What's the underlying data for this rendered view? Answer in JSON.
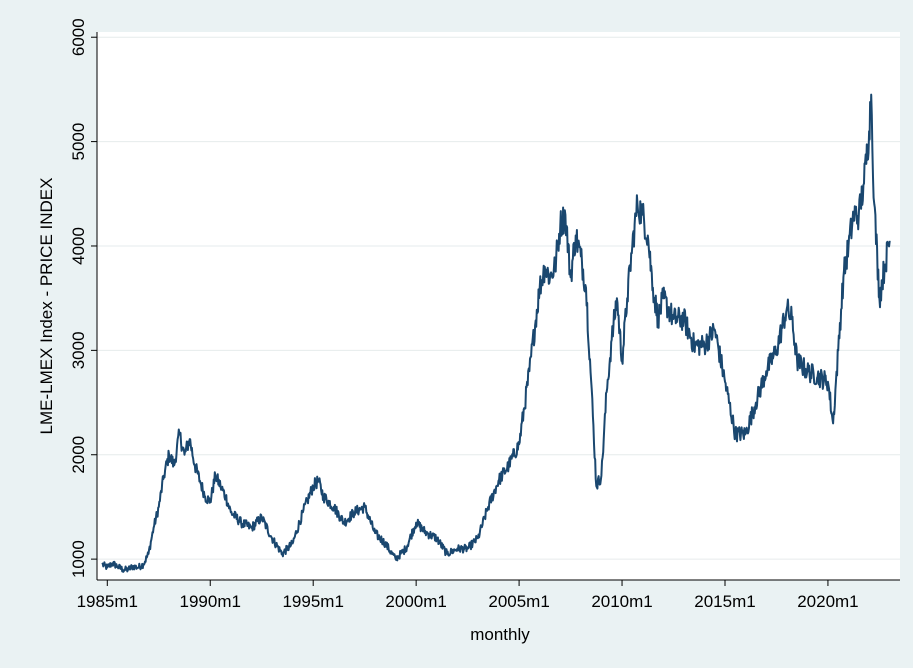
{
  "chart_data": {
    "type": "line",
    "title": "",
    "xlabel": "monthly",
    "ylabel": "LME-LMEX Index - PRICE INDEX",
    "xlim": [
      1984.5,
      2023.5
    ],
    "ylim": [
      800,
      6050
    ],
    "x_ticks": [
      {
        "value": 1985,
        "label": "1985m1"
      },
      {
        "value": 1990,
        "label": "1990m1"
      },
      {
        "value": 1995,
        "label": "1995m1"
      },
      {
        "value": 2000,
        "label": "2000m1"
      },
      {
        "value": 2005,
        "label": "2005m1"
      },
      {
        "value": 2010,
        "label": "2010m1"
      },
      {
        "value": 2015,
        "label": "2015m1"
      },
      {
        "value": 2020,
        "label": "2020m1"
      }
    ],
    "y_ticks": [
      {
        "value": 1000,
        "label": "1000"
      },
      {
        "value": 2000,
        "label": "2000"
      },
      {
        "value": 3000,
        "label": "3000"
      },
      {
        "value": 4000,
        "label": "4000"
      },
      {
        "value": 5000,
        "label": "5000"
      },
      {
        "value": 6000,
        "label": "6000"
      }
    ],
    "grid": true,
    "line_color": "#1a476f",
    "series": [
      {
        "name": "",
        "x": [
          1984.75,
          1985.0,
          1985.25,
          1985.5,
          1985.75,
          1986.0,
          1986.25,
          1986.5,
          1986.75,
          1987.0,
          1987.25,
          1987.5,
          1987.75,
          1988.0,
          1988.25,
          1988.5,
          1988.75,
          1989.0,
          1989.25,
          1989.5,
          1989.75,
          1990.0,
          1990.25,
          1990.5,
          1990.75,
          1991.0,
          1991.5,
          1992.0,
          1992.5,
          1993.0,
          1993.5,
          1994.0,
          1994.5,
          1995.0,
          1995.25,
          1995.5,
          1996.0,
          1996.5,
          1997.0,
          1997.5,
          1998.0,
          1998.5,
          1999.0,
          1999.5,
          2000.0,
          2000.5,
          2001.0,
          2001.5,
          2002.0,
          2002.5,
          2003.0,
          2003.5,
          2004.0,
          2004.5,
          2005.0,
          2005.5,
          2006.0,
          2006.25,
          2006.5,
          2006.75,
          2007.0,
          2007.25,
          2007.5,
          2007.75,
          2008.0,
          2008.25,
          2008.5,
          2008.75,
          2009.0,
          2009.25,
          2009.5,
          2009.75,
          2010.0,
          2010.25,
          2010.5,
          2010.75,
          2011.0,
          2011.25,
          2011.5,
          2011.75,
          2012.0,
          2012.5,
          2013.0,
          2013.5,
          2014.0,
          2014.5,
          2015.0,
          2015.5,
          2016.0,
          2016.5,
          2017.0,
          2017.5,
          2018.0,
          2018.25,
          2018.5,
          2019.0,
          2019.5,
          2020.0,
          2020.25,
          2020.5,
          2020.75,
          2021.0,
          2021.25,
          2021.5,
          2021.75,
          2022.0,
          2022.1,
          2022.25,
          2022.5,
          2022.75,
          2023.0
        ],
        "values": [
          950,
          920,
          960,
          930,
          900,
          900,
          930,
          920,
          950,
          1050,
          1300,
          1500,
          1800,
          2000,
          1900,
          2200,
          2000,
          2150,
          1900,
          1750,
          1600,
          1550,
          1800,
          1700,
          1600,
          1450,
          1350,
          1300,
          1400,
          1200,
          1050,
          1150,
          1450,
          1700,
          1750,
          1600,
          1500,
          1350,
          1450,
          1500,
          1250,
          1150,
          1000,
          1100,
          1350,
          1250,
          1200,
          1050,
          1100,
          1100,
          1200,
          1500,
          1750,
          1900,
          2100,
          2800,
          3600,
          3800,
          3700,
          3800,
          4200,
          4300,
          3700,
          4100,
          3900,
          3600,
          2700,
          1700,
          1800,
          2600,
          3100,
          3500,
          2900,
          3500,
          4000,
          4400,
          4300,
          4100,
          3600,
          3300,
          3500,
          3300,
          3300,
          3050,
          3050,
          3200,
          2700,
          2200,
          2200,
          2500,
          2800,
          3000,
          3400,
          3300,
          2900,
          2800,
          2750,
          2700,
          2300,
          3000,
          3700,
          4000,
          4300,
          4300,
          4600,
          5100,
          5450,
          4400,
          3500,
          3800,
          4050
        ]
      }
    ]
  }
}
